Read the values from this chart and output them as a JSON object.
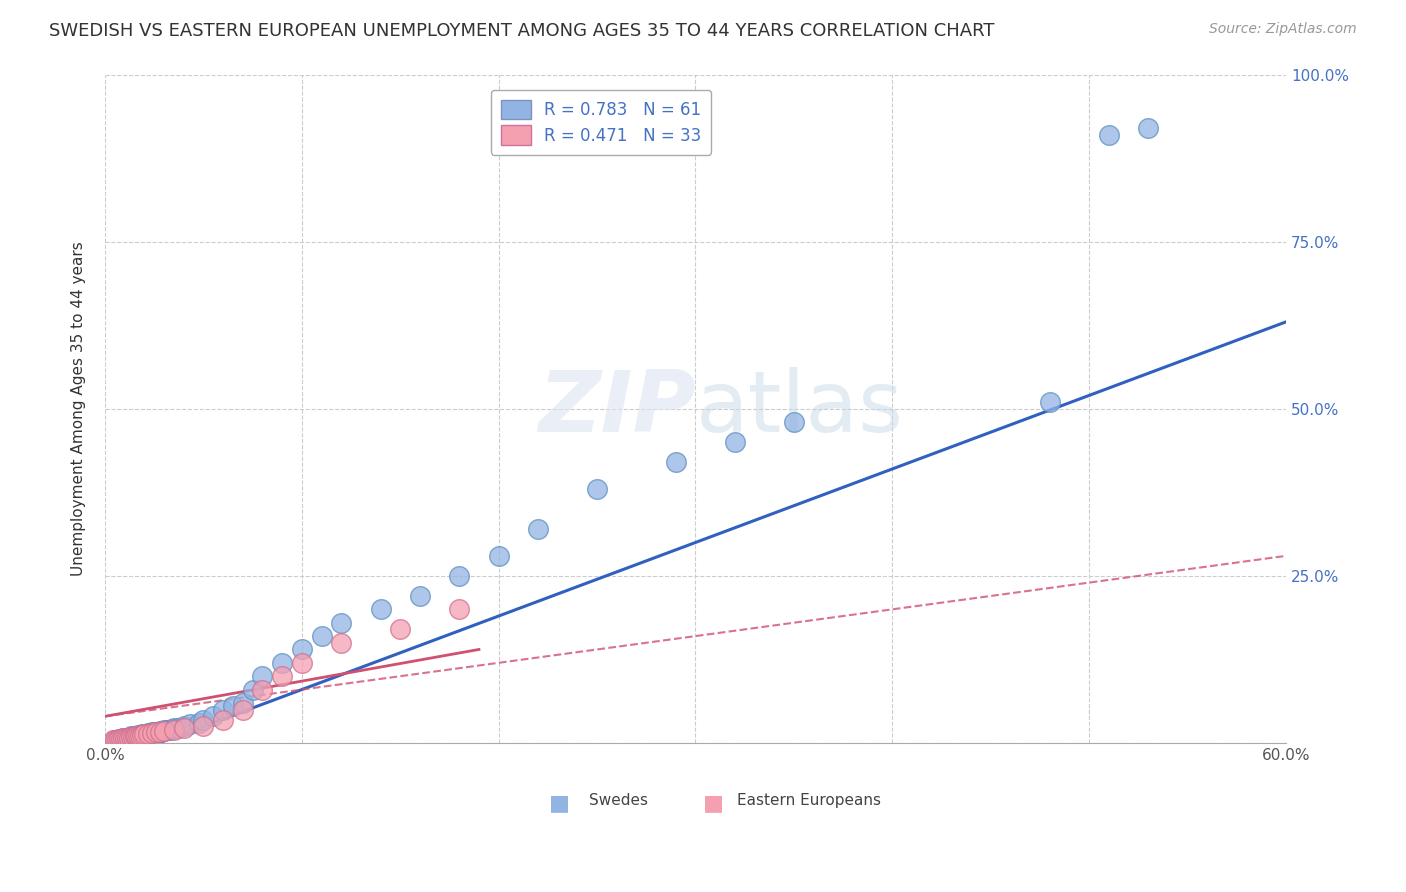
{
  "title": "SWEDISH VS EASTERN EUROPEAN UNEMPLOYMENT AMONG AGES 35 TO 44 YEARS CORRELATION CHART",
  "source": "Source: ZipAtlas.com",
  "ylabel": "Unemployment Among Ages 35 to 44 years",
  "xlim": [
    0.0,
    0.6
  ],
  "ylim": [
    0.0,
    1.0
  ],
  "xticks": [
    0.0,
    0.1,
    0.2,
    0.3,
    0.4,
    0.5,
    0.6
  ],
  "yticks": [
    0.0,
    0.25,
    0.5,
    0.75,
    1.0
  ],
  "swede_color": "#92b4e3",
  "eastern_color": "#f4a0b0",
  "swede_line_color": "#3060c0",
  "eastern_line_color": "#d05070",
  "background_color": "#ffffff",
  "title_fontsize": 13,
  "axis_label_fontsize": 11,
  "tick_fontsize": 11,
  "swede_line": [
    0.0,
    -0.03,
    0.6,
    0.63
  ],
  "eastern_line": [
    0.0,
    0.04,
    0.6,
    0.28
  ],
  "eastern_solid_line": [
    0.0,
    0.04,
    0.19,
    0.14
  ],
  "swedes_x": [
    0.005,
    0.007,
    0.008,
    0.009,
    0.01,
    0.01,
    0.011,
    0.012,
    0.013,
    0.013,
    0.014,
    0.015,
    0.015,
    0.016,
    0.017,
    0.018,
    0.019,
    0.02,
    0.02,
    0.021,
    0.022,
    0.023,
    0.024,
    0.025,
    0.026,
    0.027,
    0.028,
    0.029,
    0.03,
    0.031,
    0.032,
    0.033,
    0.034,
    0.035,
    0.037,
    0.04,
    0.043,
    0.048,
    0.05,
    0.055,
    0.06,
    0.065,
    0.07,
    0.075,
    0.08,
    0.09,
    0.1,
    0.11,
    0.12,
    0.14,
    0.16,
    0.18,
    0.2,
    0.22,
    0.25,
    0.29,
    0.32,
    0.35,
    0.48,
    0.51,
    0.53
  ],
  "swedes_y": [
    0.005,
    0.006,
    0.006,
    0.007,
    0.007,
    0.008,
    0.008,
    0.008,
    0.009,
    0.01,
    0.01,
    0.01,
    0.011,
    0.011,
    0.012,
    0.012,
    0.013,
    0.013,
    0.014,
    0.014,
    0.015,
    0.015,
    0.016,
    0.016,
    0.017,
    0.017,
    0.018,
    0.018,
    0.019,
    0.019,
    0.02,
    0.02,
    0.021,
    0.022,
    0.023,
    0.025,
    0.028,
    0.03,
    0.035,
    0.04,
    0.05,
    0.055,
    0.06,
    0.08,
    0.1,
    0.12,
    0.14,
    0.16,
    0.18,
    0.2,
    0.22,
    0.25,
    0.28,
    0.32,
    0.38,
    0.42,
    0.45,
    0.48,
    0.51,
    0.91,
    0.92
  ],
  "eastern_x": [
    0.004,
    0.005,
    0.006,
    0.007,
    0.008,
    0.009,
    0.01,
    0.011,
    0.012,
    0.013,
    0.014,
    0.015,
    0.016,
    0.017,
    0.018,
    0.019,
    0.02,
    0.022,
    0.024,
    0.026,
    0.028,
    0.03,
    0.035,
    0.04,
    0.05,
    0.06,
    0.07,
    0.08,
    0.09,
    0.1,
    0.12,
    0.15,
    0.18
  ],
  "eastern_y": [
    0.004,
    0.005,
    0.005,
    0.006,
    0.006,
    0.007,
    0.007,
    0.008,
    0.008,
    0.009,
    0.009,
    0.01,
    0.01,
    0.011,
    0.011,
    0.012,
    0.013,
    0.014,
    0.015,
    0.016,
    0.017,
    0.018,
    0.02,
    0.022,
    0.025,
    0.035,
    0.05,
    0.08,
    0.1,
    0.12,
    0.15,
    0.17,
    0.2
  ]
}
